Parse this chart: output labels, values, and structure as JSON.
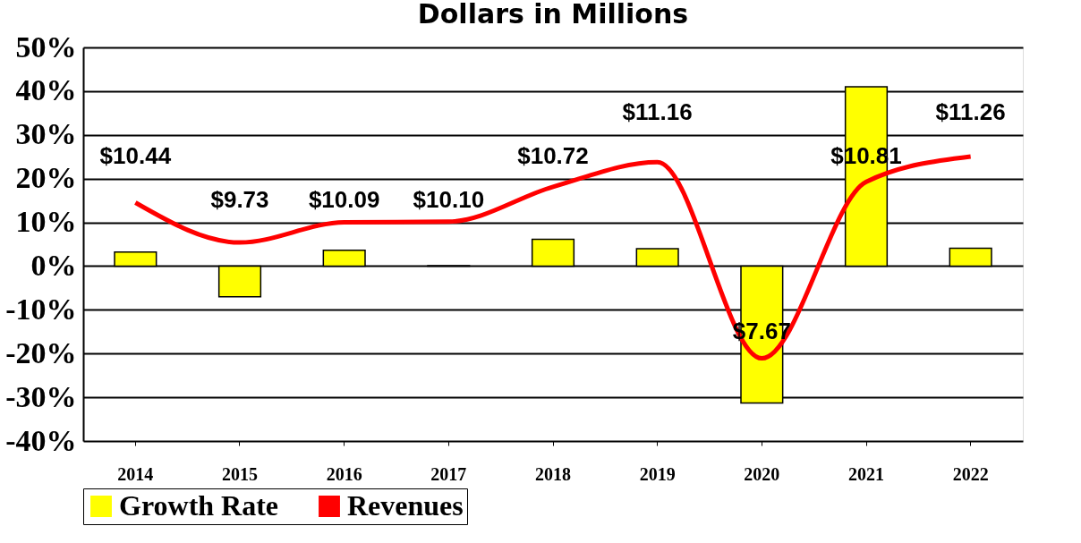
{
  "chart_data": {
    "type": "bar",
    "title": "Dollars in Millions",
    "categories": [
      "2014",
      "2015",
      "2016",
      "2017",
      "2018",
      "2019",
      "2020",
      "2021",
      "2022"
    ],
    "series": [
      {
        "name": "Growth Rate",
        "color": "#ffff00",
        "values": [
          3.2,
          -7.0,
          3.6,
          0.1,
          6.1,
          4.0,
          -31.3,
          41.0,
          4.1
        ]
      },
      {
        "name": "Revenues",
        "type": "line",
        "axis": "y2",
        "color": "#ff0000",
        "values": [
          10.44,
          9.73,
          10.09,
          10.1,
          10.72,
          11.16,
          7.67,
          10.81,
          11.26
        ],
        "value_labels": [
          "$10.44",
          "$9.73",
          "$10.09",
          "$10.10",
          "$10.72",
          "$11.16",
          "$7.67",
          "$10.81",
          "$11.26"
        ]
      }
    ],
    "ylim": [
      -40,
      50
    ],
    "yticks": [
      {
        "value": -40,
        "label": "-40%"
      },
      {
        "value": -30,
        "label": "-30%"
      },
      {
        "value": -20,
        "label": "-20%"
      },
      {
        "value": -10,
        "label": "-10%"
      },
      {
        "value": 0,
        "label": "0%"
      },
      {
        "value": 10,
        "label": "10%"
      },
      {
        "value": 20,
        "label": "20%"
      },
      {
        "value": 30,
        "label": "30%"
      },
      {
        "value": 40,
        "label": "40%"
      },
      {
        "value": 50,
        "label": "50%"
      }
    ],
    "y2lim": [
      6.2,
      13.2
    ],
    "grid": "y",
    "legend": "bottom",
    "line_style": "solid"
  }
}
